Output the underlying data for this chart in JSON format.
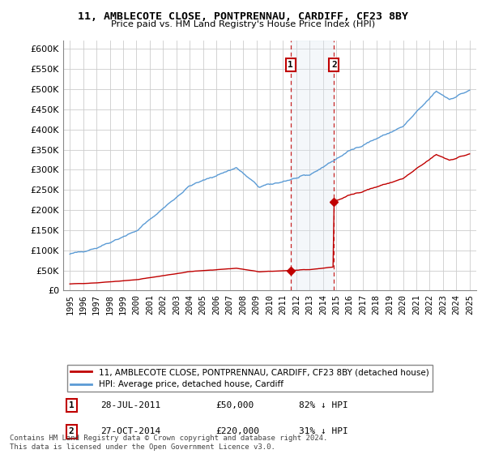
{
  "title": "11, AMBLECOTE CLOSE, PONTPRENNAU, CARDIFF, CF23 8BY",
  "subtitle": "Price paid vs. HM Land Registry's House Price Index (HPI)",
  "legend_line1": "11, AMBLECOTE CLOSE, PONTPRENNAU, CARDIFF, CF23 8BY (detached house)",
  "legend_line2": "HPI: Average price, detached house, Cardiff",
  "footnote": "Contains HM Land Registry data © Crown copyright and database right 2024.\nThis data is licensed under the Open Government Licence v3.0.",
  "sale1_date_label": "28-JUL-2011",
  "sale1_price": 50000,
  "sale1_pct": "82% ↓ HPI",
  "sale1_year": 2011.57,
  "sale2_date_label": "27-OCT-2014",
  "sale2_price": 220000,
  "sale2_pct": "31% ↓ HPI",
  "sale2_year": 2014.82,
  "ylabel_ticks": [
    0,
    50000,
    100000,
    150000,
    200000,
    250000,
    300000,
    350000,
    400000,
    450000,
    500000,
    550000,
    600000
  ],
  "ylabel_labels": [
    "£0",
    "£50K",
    "£100K",
    "£150K",
    "£200K",
    "£250K",
    "£300K",
    "£350K",
    "£400K",
    "£450K",
    "£500K",
    "£550K",
    "£600K"
  ],
  "xlim": [
    1994.5,
    2025.5
  ],
  "ylim": [
    0,
    620000
  ],
  "hpi_color": "#5b9bd5",
  "price_color": "#c00000",
  "shade_color": "#dce6f1",
  "background_color": "#ffffff",
  "grid_color": "#cccccc"
}
